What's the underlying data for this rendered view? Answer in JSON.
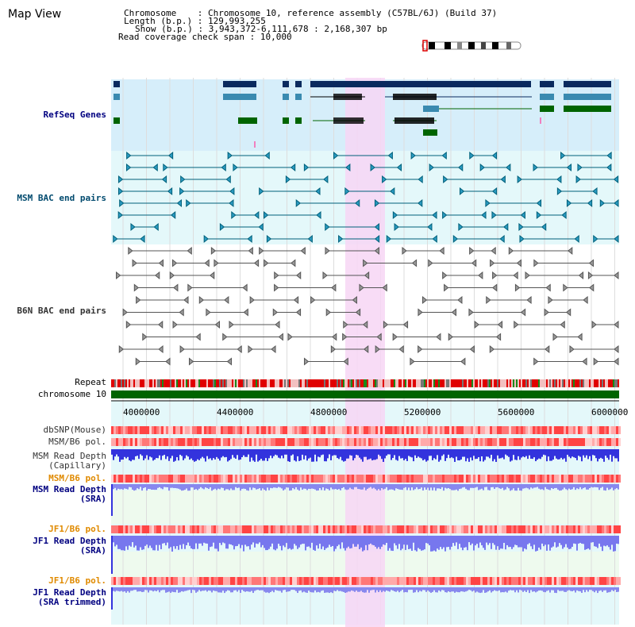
{
  "title": "Map View",
  "info": {
    "chromosome_label": "Chromosome",
    "chromosome_value": "Chromosome 10, reference assembly (C57BL/6J) (Build 37)",
    "length_label": "Length (b.p.)",
    "length_value": "129,993,255",
    "show_label": "Show (b.p.)",
    "show_value": "3,943,372-6,111,678 : 2,168,307 bp",
    "coverage_label": "Read coverage check span",
    "coverage_value": "10,000"
  },
  "tracks": {
    "refseq": "RefSeq Genes",
    "msm_bac": "MSM BAC end pairs",
    "b6n_bac": "B6N BAC end pairs",
    "repeat": "Repeat",
    "chromosome": "chromosome 10",
    "dbsnp": "dbSNP(Mouse)",
    "msm_b6_pol1": "MSM/B6 pol.",
    "msm_depth_cap_1": "MSM Read Depth",
    "msm_depth_cap_2": "(Capillary)",
    "msm_b6_pol2": "MSM/B6 pol.",
    "msm_depth_sra_1": "MSM Read Depth",
    "msm_depth_sra_2": "(SRA)",
    "jf1_pol1": "JF1/B6 pol.",
    "jf1_depth_sra_1": "JF1 Read Depth",
    "jf1_depth_sra_2": "(SRA)",
    "jf1_pol2": "JF1/B6 pol.",
    "jf1_depth_trim_1": "JF1 Read Depth",
    "jf1_depth_trim_2": "(SRA trimmed)"
  },
  "axis": {
    "ticks": [
      "4000000",
      "4400000",
      "4800000",
      "5200000",
      "5600000",
      "6000000"
    ]
  },
  "colors": {
    "refseq_bg": "#d6eefa",
    "msm_bg": "#e4f8fa",
    "highlight": "#f7d6f4",
    "gene_dark": "#0a2a5e",
    "gene_mid": "#3a8ab0",
    "gene_green": "#006400",
    "chromosome_bar": "#006400",
    "repeat_red": "#e00000",
    "depth_blue": "#3333dd",
    "depth_light": "#8888ee"
  }
}
